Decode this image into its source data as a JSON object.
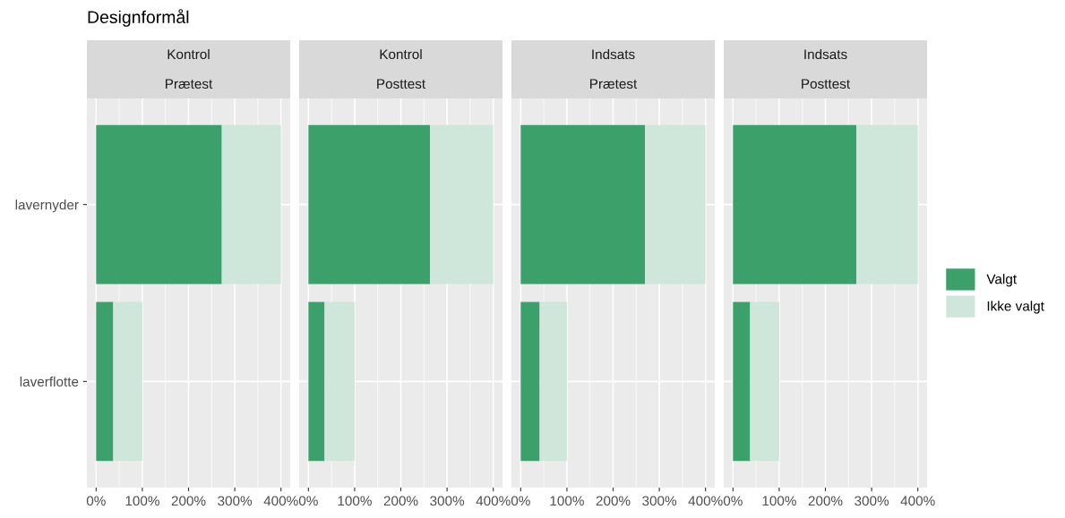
{
  "chart_data": [
    {
      "type": "bar",
      "orientation": "horizontal",
      "stacked": true,
      "title": "Kontrol",
      "subtitle": "Prætest",
      "annotations": [
        "Designformål"
      ],
      "categories": [
        "lavernyder",
        "laverflotte"
      ],
      "series": [
        {
          "color": "#3ba06a",
          "values": [
            272,
            37
          ]
        },
        {
          "color": "#cfe7da",
          "values": [
            128,
            63
          ]
        }
      ],
      "xlim": [
        -20,
        420
      ],
      "xticks": [
        {
          "value": 0,
          "label": "0%"
        },
        {
          "value": 100,
          "label": "100%"
        },
        {
          "value": 200,
          "label": "200%"
        },
        {
          "value": 300,
          "label": "300%"
        },
        {
          "value": 400,
          "label": "400%"
        }
      ],
      "grid": true,
      "legend": false
    },
    {
      "type": "bar",
      "orientation": "horizontal",
      "stacked": true,
      "title": "Kontrol",
      "subtitle": "Posttest",
      "categories": [
        "lavernyder",
        "laverflotte"
      ],
      "series": [
        {
          "color": "#3ba06a",
          "values": [
            263,
            35
          ]
        },
        {
          "color": "#cfe7da",
          "values": [
            137,
            65
          ]
        }
      ],
      "xlim": [
        -20,
        420
      ],
      "xticks": [
        {
          "value": 0,
          "label": "0%"
        },
        {
          "value": 100,
          "label": "100%"
        },
        {
          "value": 200,
          "label": "200%"
        },
        {
          "value": 300,
          "label": "300%"
        },
        {
          "value": 400,
          "label": "400%"
        }
      ],
      "grid": true,
      "legend": false,
      "tick_labels": "x"
    },
    {
      "type": "bar",
      "orientation": "horizontal",
      "stacked": true,
      "title": "Indsats",
      "subtitle": "Prætest",
      "categories": [
        "lavernyder",
        "laverflotte"
      ],
      "series": [
        {
          "color": "#3ba06a",
          "values": [
            269,
            41
          ]
        },
        {
          "color": "#cfe7da",
          "values": [
            131,
            59
          ]
        }
      ],
      "xlim": [
        -20,
        420
      ],
      "xticks": [
        {
          "value": 0,
          "label": "0%"
        },
        {
          "value": 100,
          "label": "100%"
        },
        {
          "value": 200,
          "label": "200%"
        },
        {
          "value": 300,
          "label": "300%"
        },
        {
          "value": 400,
          "label": "400%"
        }
      ],
      "grid": true,
      "legend": false,
      "tick_labels": "x"
    },
    {
      "type": "bar",
      "orientation": "horizontal",
      "stacked": true,
      "title": "Indsats",
      "subtitle": "Posttest",
      "categories": [
        "lavernyder",
        "laverflotte"
      ],
      "series": [
        {
          "name": "Valgt",
          "color": "#3ba06a",
          "values": [
            267,
            37
          ]
        },
        {
          "name": "Ikke valgt",
          "color": "#cfe7da",
          "values": [
            133,
            63
          ]
        }
      ],
      "xlim": [
        -20,
        420
      ],
      "xticks": [
        {
          "value": 0,
          "label": "0%"
        },
        {
          "value": 100,
          "label": "100%"
        },
        {
          "value": 200,
          "label": "200%"
        },
        {
          "value": 300,
          "label": "300%"
        },
        {
          "value": 400,
          "label": "400%"
        }
      ],
      "grid": true,
      "legend": "right",
      "tick_labels": "x"
    }
  ]
}
